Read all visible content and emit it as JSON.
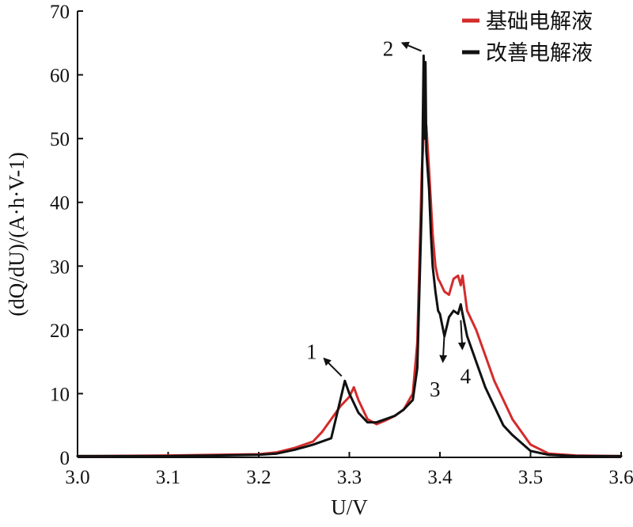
{
  "chart_data": {
    "type": "line",
    "xlabel": "U/V",
    "ylabel": "(dQ/dU)/(A·h·V-1)",
    "xlim": [
      3.0,
      3.6
    ],
    "ylim": [
      0,
      70
    ],
    "xticks": [
      "3.0",
      "3.1",
      "3.2",
      "3.3",
      "3.4",
      "3.5",
      "3.6"
    ],
    "yticks": [
      "0",
      "10",
      "20",
      "30",
      "40",
      "50",
      "60",
      "70"
    ],
    "grid": false,
    "legend_position": "top-right",
    "series": [
      {
        "name": "基础电解液",
        "color": "#d42b2b",
        "x": [
          3.0,
          3.1,
          3.2,
          3.22,
          3.24,
          3.26,
          3.27,
          3.28,
          3.29,
          3.3,
          3.305,
          3.31,
          3.32,
          3.33,
          3.34,
          3.35,
          3.36,
          3.37,
          3.375,
          3.38,
          3.383,
          3.385,
          3.388,
          3.39,
          3.392,
          3.395,
          3.398,
          3.4,
          3.405,
          3.41,
          3.415,
          3.42,
          3.423,
          3.425,
          3.43,
          3.44,
          3.45,
          3.46,
          3.47,
          3.48,
          3.5,
          3.52,
          3.55,
          3.6
        ],
        "y": [
          0.2,
          0.3,
          0.5,
          0.8,
          1.5,
          2.5,
          4.0,
          6.0,
          8.0,
          9.5,
          11.0,
          9.0,
          6.0,
          5.2,
          5.8,
          6.5,
          7.5,
          10.0,
          18.0,
          45.0,
          53.0,
          52.0,
          45.0,
          40.0,
          35.0,
          30.0,
          28.0,
          27.5,
          26.0,
          25.5,
          28.0,
          28.5,
          27.0,
          28.5,
          23.0,
          20.0,
          16.0,
          12.0,
          9.0,
          6.0,
          2.0,
          0.6,
          0.3,
          0.2
        ]
      },
      {
        "name": "改善电解液",
        "color": "#111111",
        "x": [
          3.0,
          3.1,
          3.2,
          3.22,
          3.24,
          3.26,
          3.28,
          3.29,
          3.295,
          3.3,
          3.31,
          3.32,
          3.33,
          3.34,
          3.35,
          3.36,
          3.37,
          3.375,
          3.38,
          3.382,
          3.383,
          3.384,
          3.385,
          3.388,
          3.39,
          3.392,
          3.395,
          3.398,
          3.4,
          3.405,
          3.41,
          3.415,
          3.42,
          3.423,
          3.425,
          3.43,
          3.44,
          3.45,
          3.46,
          3.47,
          3.48,
          3.5,
          3.52,
          3.55,
          3.6
        ],
        "y": [
          0.2,
          0.2,
          0.4,
          0.6,
          1.2,
          2.0,
          3.0,
          9.0,
          12.0,
          10.0,
          7.0,
          5.5,
          5.5,
          6.0,
          6.5,
          7.5,
          9.0,
          14.0,
          40.0,
          63.0,
          50.0,
          62.0,
          48.0,
          42.0,
          35.0,
          30.0,
          26.0,
          23.0,
          22.5,
          19.0,
          22.0,
          23.0,
          22.5,
          24.0,
          22.5,
          19.0,
          15.0,
          11.0,
          8.0,
          5.0,
          3.5,
          1.0,
          0.4,
          0.2,
          0.2
        ]
      }
    ],
    "annotations": [
      {
        "label": "1",
        "x": 3.295,
        "y": 12.0
      },
      {
        "label": "2",
        "x": 3.383,
        "y": 63.0
      },
      {
        "label": "3",
        "x": 3.405,
        "y": 20.0
      },
      {
        "label": "4",
        "x": 3.423,
        "y": 22.0
      }
    ]
  }
}
